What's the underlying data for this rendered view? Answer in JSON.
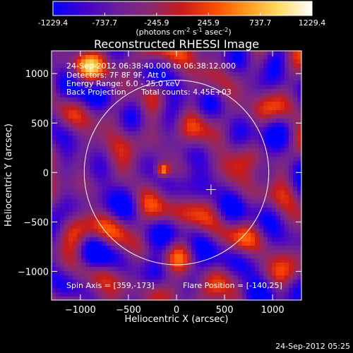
{
  "chart_data": {
    "type": "heatmap",
    "title": "Reconstructed RHESSI Image",
    "xlabel": "Heliocentric X (arcsec)",
    "ylabel": "Heliocentric Y (arcsec)",
    "xlim": [
      -1300,
      1300
    ],
    "ylim": [
      -1290,
      1230
    ],
    "x_ticks": [
      -1000,
      -500,
      0,
      500,
      1000
    ],
    "y_ticks": [
      -1000,
      -500,
      0,
      500,
      1000
    ],
    "colorbar": {
      "min": -1229.4,
      "max": 1229.4,
      "ticks": [
        "-1229.4",
        "-737.7",
        "-245.9",
        "245.9",
        "737.7",
        "1229.4"
      ],
      "stops": [
        "#0000ff",
        "#4400cc",
        "#6a1f9b",
        "#8a2a70",
        "#c81a1a",
        "#ff4a00",
        "#ff9a1a",
        "#ffdd66",
        "#ffffff"
      ]
    },
    "units_label": "(photons cm^-2 s^-1 asec^-2)",
    "annotations": {
      "time_range": "24-Sep-2012 06:38:40.000 to 06:38:12.000",
      "detectors": "Detectors: 7F 8F 9F, Att 0",
      "energy": "Energy Range: 6.0 - 25.0 keV",
      "method": "Back Projection",
      "total_counts": "Total counts: 4.45E+03",
      "spin_axis": "Spin Axis = [359,-173]",
      "flare_position": "Flare Position = [-140,25]"
    },
    "solar_disk": {
      "center": [
        0,
        0
      ],
      "radius": 960
    },
    "crosshair": [
      359,
      -173
    ],
    "bright_source": [
      -140,
      25
    ]
  },
  "footer": {
    "timestamp": "24-Sep-2012 05:25"
  }
}
